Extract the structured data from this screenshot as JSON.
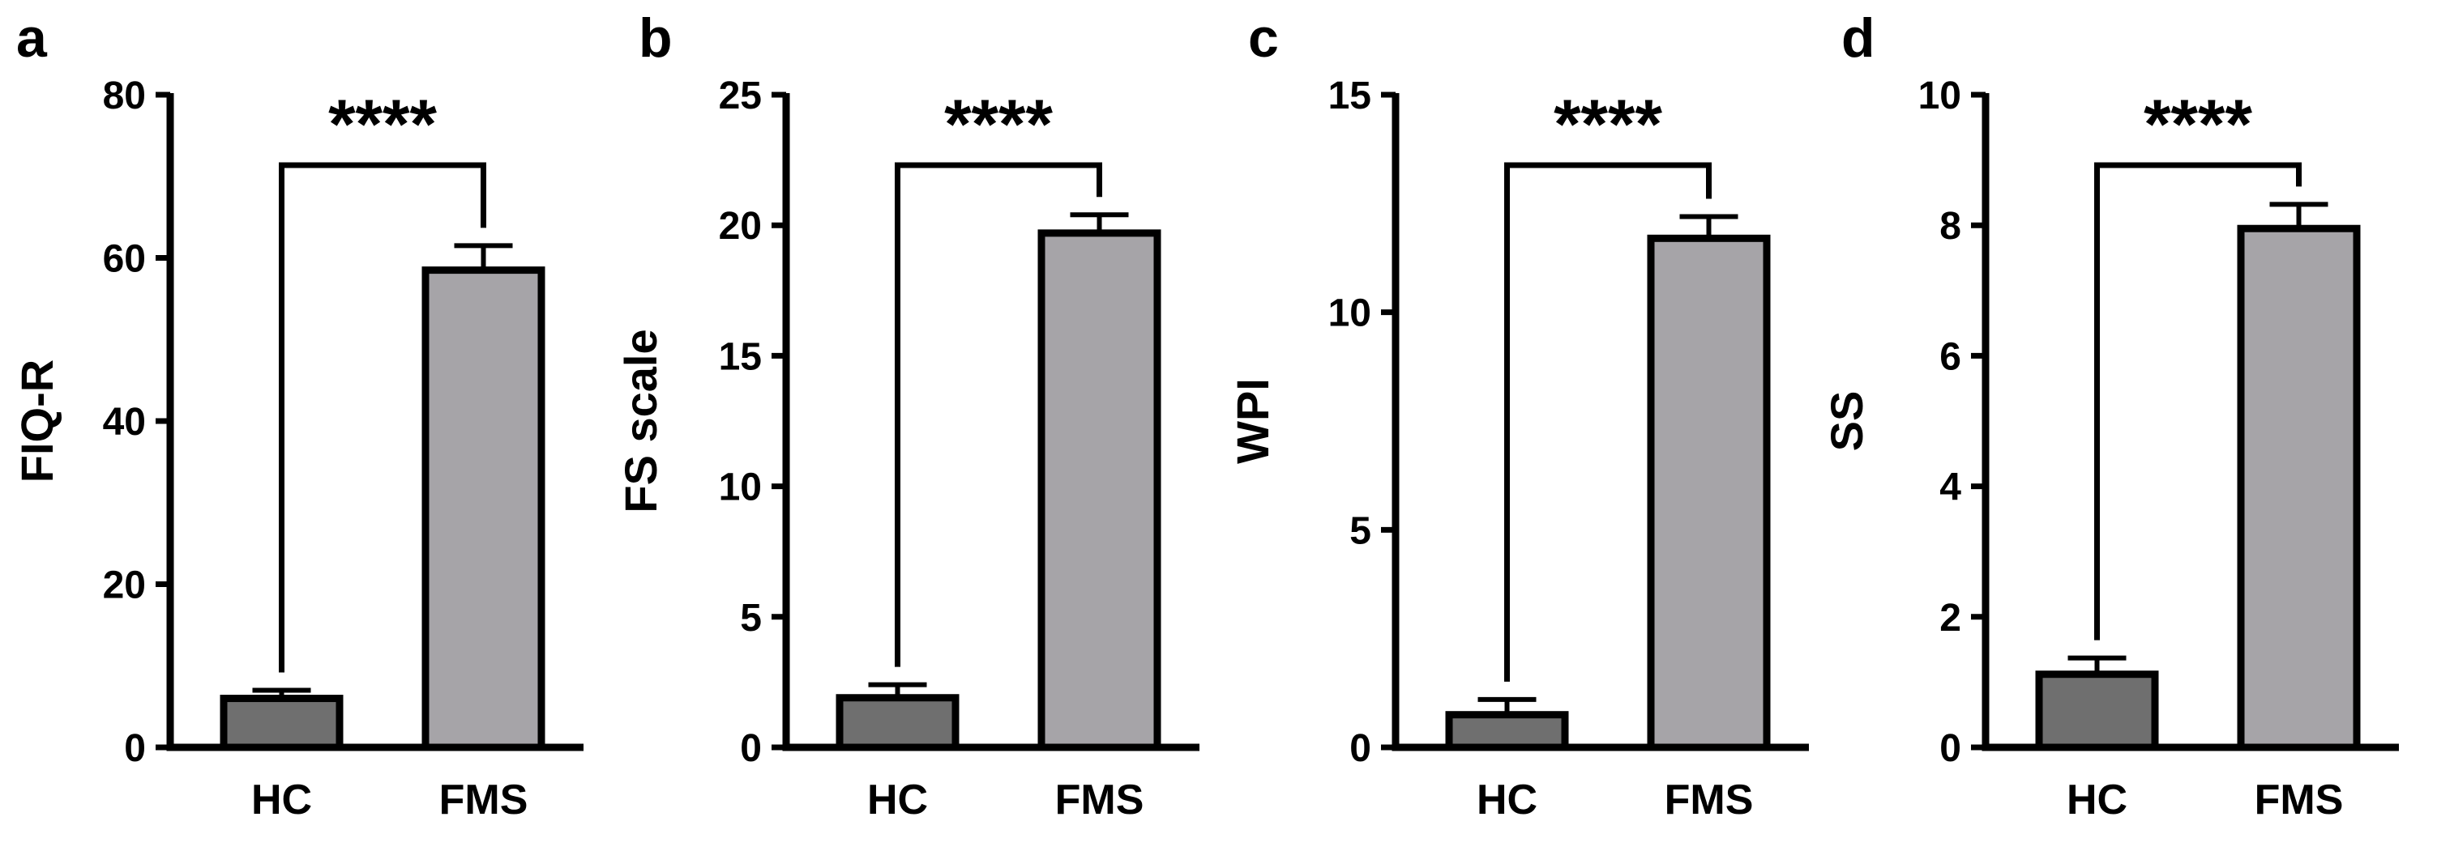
{
  "chart_data": [
    {
      "panel_label": "a",
      "type": "bar",
      "ylabel": "FIQ-R",
      "categories": [
        "HC",
        "FMS"
      ],
      "values": [
        6.0,
        58.5
      ],
      "errors": [
        1.0,
        3.0
      ],
      "ylim": [
        0,
        80
      ],
      "yticks": [
        "0",
        "20",
        "40",
        "60",
        "80"
      ],
      "significance": "****",
      "bar_colors": [
        "#6f6f6f",
        "#a6a4a8"
      ]
    },
    {
      "panel_label": "b",
      "type": "bar",
      "ylabel": "FS scale",
      "categories": [
        "HC",
        "FMS"
      ],
      "values": [
        1.9,
        19.7
      ],
      "errors": [
        0.5,
        0.7
      ],
      "ylim": [
        0,
        25
      ],
      "yticks": [
        "0",
        "5",
        "10",
        "15",
        "20",
        "25"
      ],
      "significance": "****",
      "bar_colors": [
        "#6f6f6f",
        "#a6a4a8"
      ]
    },
    {
      "panel_label": "c",
      "type": "bar",
      "ylabel": "WPI",
      "categories": [
        "HC",
        "FMS"
      ],
      "values": [
        0.75,
        11.7
      ],
      "errors": [
        0.35,
        0.5
      ],
      "ylim": [
        0,
        15
      ],
      "yticks": [
        "0",
        "5",
        "10",
        "15"
      ],
      "significance": "****",
      "bar_colors": [
        "#6f6f6f",
        "#a6a4a8"
      ]
    },
    {
      "panel_label": "d",
      "type": "bar",
      "ylabel": "SS",
      "categories": [
        "HC",
        "FMS"
      ],
      "values": [
        1.12,
        7.95
      ],
      "errors": [
        0.25,
        0.37
      ],
      "ylim": [
        0,
        10
      ],
      "yticks": [
        "0",
        "2",
        "4",
        "6",
        "8",
        "10"
      ],
      "significance": "****",
      "bar_colors": [
        "#6f6f6f",
        "#a6a4a8"
      ]
    }
  ]
}
